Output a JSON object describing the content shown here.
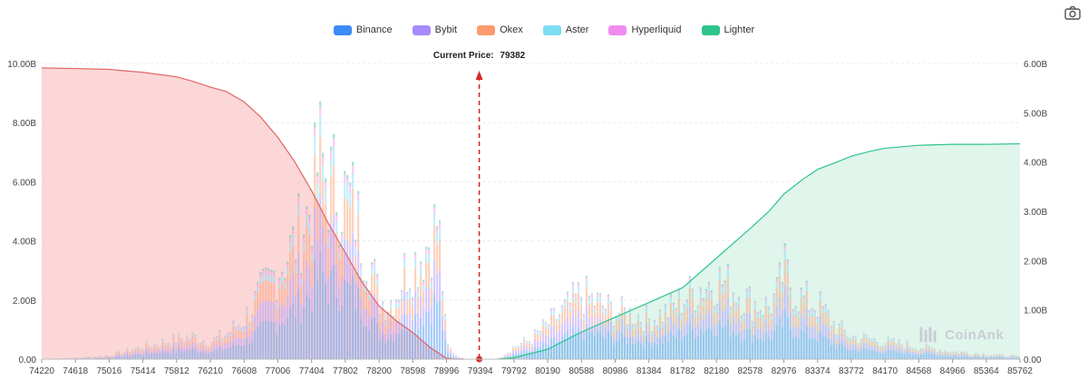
{
  "chart_data": {
    "type": "bar",
    "title": "",
    "legend": {
      "placement": "top-center",
      "items": [
        {
          "name": "Binance",
          "color": "#3d8bf7"
        },
        {
          "name": "Bybit",
          "color": "#a78bfa"
        },
        {
          "name": "Okex",
          "color": "#fb9a6c"
        },
        {
          "name": "Aster",
          "color": "#7ddcf3"
        },
        {
          "name": "Hyperliquid",
          "color": "#f08cf0"
        },
        {
          "name": "Lighter",
          "color": "#2fc48d"
        }
      ]
    },
    "current_price_label": "Current Price:",
    "current_price": 79382,
    "x_ticks": [
      "74220",
      "74618",
      "75016",
      "75414",
      "75812",
      "76210",
      "76608",
      "77006",
      "77404",
      "77802",
      "78200",
      "78598",
      "78996",
      "79394",
      "79792",
      "80190",
      "80588",
      "80986",
      "81384",
      "81782",
      "82180",
      "82578",
      "82976",
      "83374",
      "83772",
      "84170",
      "84568",
      "84966",
      "85364",
      "85762"
    ],
    "y_left_ticks": [
      "0.00",
      "2.00B",
      "4.00B",
      "6.00B",
      "8.00B",
      "10.00B"
    ],
    "y_right_ticks": [
      "0.00",
      "1.00B",
      "2.00B",
      "3.00B",
      "4.00B",
      "5.00B",
      "6.00B"
    ],
    "y_left_range": [
      0,
      10
    ],
    "y_right_range": [
      0,
      6
    ],
    "x_range": [
      74220,
      85762
    ],
    "grid": true,
    "cumulative_short": {
      "axis": "left",
      "color": "#e06666",
      "x": [
        74220,
        74618,
        75016,
        75414,
        75812,
        76000,
        76210,
        76400,
        76608,
        76800,
        77006,
        77200,
        77404,
        77600,
        77802,
        78000,
        78200,
        78400,
        78598,
        78800,
        78996,
        79100,
        79200
      ],
      "y": [
        9.85,
        9.83,
        9.8,
        9.7,
        9.55,
        9.4,
        9.2,
        9.05,
        8.7,
        8.2,
        7.5,
        6.7,
        5.7,
        4.6,
        3.6,
        2.6,
        1.8,
        1.3,
        0.9,
        0.4,
        0.03,
        0,
        0
      ]
    },
    "cumulative_long": {
      "axis": "right",
      "color": "#2fc48d",
      "x": [
        79600,
        79792,
        80190,
        80588,
        80986,
        81384,
        81782,
        82180,
        82578,
        82800,
        82976,
        83200,
        83374,
        83600,
        83772,
        84000,
        84170,
        84568,
        84966,
        85364,
        85762
      ],
      "y": [
        0,
        0.03,
        0.2,
        0.55,
        0.85,
        1.15,
        1.45,
        2.05,
        2.65,
        3.0,
        3.35,
        3.65,
        3.85,
        4.0,
        4.12,
        4.22,
        4.28,
        4.34,
        4.36,
        4.36,
        4.37
      ]
    },
    "bar_profile_left_axis": {
      "x": [
        74220,
        74618,
        75016,
        75414,
        75812,
        76000,
        76210,
        76400,
        76608,
        76800,
        77006,
        77200,
        77404,
        77500,
        77600,
        77700,
        77802,
        77900,
        78000,
        78100,
        78200,
        78300,
        78400,
        78500,
        78598,
        78700,
        78800,
        78900,
        78996,
        79100,
        79200,
        79394,
        79500,
        79600,
        79792,
        80000,
        80190,
        80400,
        80588,
        80800,
        80986,
        81200,
        81384,
        81600,
        81782,
        82000,
        82180,
        82400,
        82578,
        82800,
        82900,
        82976,
        83100,
        83200,
        83374,
        83600,
        83772,
        84000,
        84170,
        84400,
        84568,
        84800,
        84966,
        85200,
        85364,
        85600,
        85762
      ],
      "y": [
        0,
        0.05,
        0.15,
        0.5,
        0.8,
        0.9,
        0.7,
        1.0,
        1.6,
        2.6,
        3.6,
        4.6,
        6.2,
        8.2,
        7.0,
        7.0,
        6.5,
        6.2,
        4.8,
        4.0,
        2.4,
        2.2,
        2.6,
        3.5,
        3.8,
        4.2,
        4.8,
        5.6,
        0.6,
        0.2,
        0,
        0,
        0,
        0,
        0.5,
        0.8,
        1.4,
        2.0,
        2.6,
        2.2,
        1.9,
        1.8,
        1.6,
        1.9,
        2.4,
        2.9,
        3.2,
        2.8,
        2.3,
        2.1,
        2.6,
        3.6,
        2.7,
        2.4,
        2.2,
        1.3,
        0.9,
        0.8,
        0.7,
        0.6,
        0.5,
        0.4,
        0.3,
        0.25,
        0.2,
        0.15,
        0.1
      ]
    }
  },
  "watermark": "CoinAnk"
}
